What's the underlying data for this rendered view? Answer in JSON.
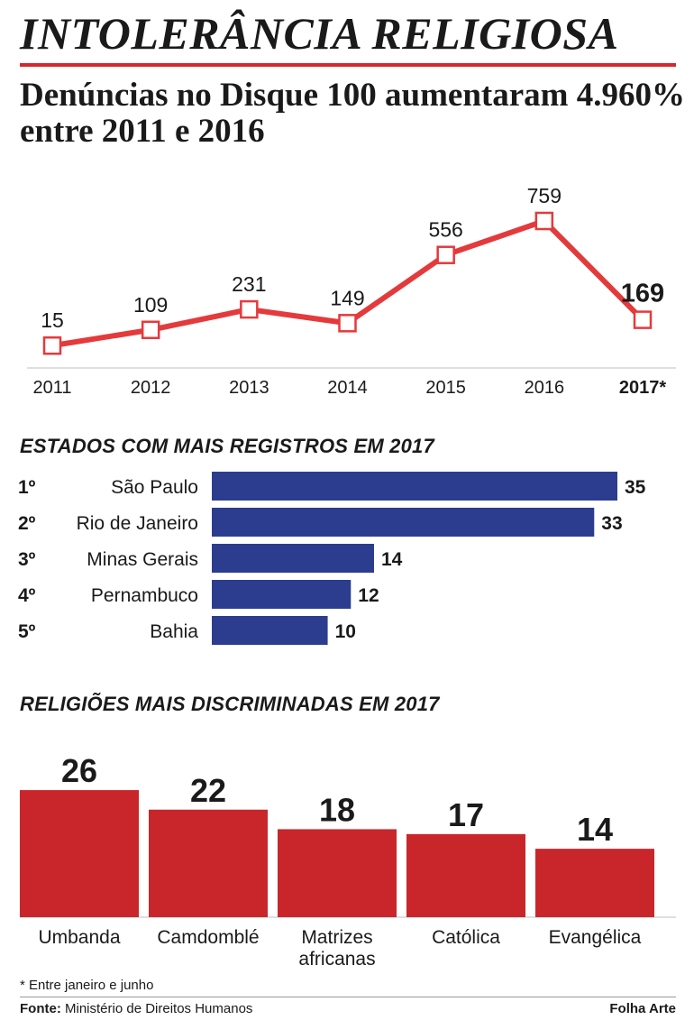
{
  "header": {
    "title": "INTOLERÂNCIA RELIGIOSA",
    "subtitle": "Denúncias no Disque 100 aumentaram 4.960% entre 2011 e 2016"
  },
  "colors": {
    "accent_red": "#e43a3c",
    "bar_red": "#c9262b",
    "bar_blue": "#2c3d8f",
    "title_rule": "#d3282e"
  },
  "chart_data": [
    {
      "type": "line",
      "title": "",
      "categories": [
        "2011",
        "2012",
        "2013",
        "2014",
        "2015",
        "2016",
        "2017*"
      ],
      "values": [
        15,
        109,
        231,
        149,
        556,
        759,
        169
      ],
      "highlight_last": true,
      "grid": false
    },
    {
      "type": "bar",
      "orientation": "horizontal",
      "title": "ESTADOS COM MAIS REGISTROS EM 2017",
      "ranks": [
        "1º",
        "2º",
        "3º",
        "4º",
        "5º"
      ],
      "categories": [
        "São Paulo",
        "Rio de Janeiro",
        "Minas Gerais",
        "Pernambuco",
        "Bahia"
      ],
      "values": [
        35,
        33,
        14,
        12,
        10
      ]
    },
    {
      "type": "bar",
      "title": "RELIGIÕES MAIS DISCRIMINADAS EM 2017",
      "categories": [
        "Umbanda",
        "Camdomblé",
        "Matrizes africanas",
        "Católica",
        "Evangélica"
      ],
      "values": [
        26,
        22,
        18,
        17,
        14
      ]
    }
  ],
  "footer": {
    "footnote": "* Entre janeiro e junho",
    "source_label": "Fonte:",
    "source_text": "Ministério de Direitos Humanos",
    "credit": "Folha Arte"
  }
}
